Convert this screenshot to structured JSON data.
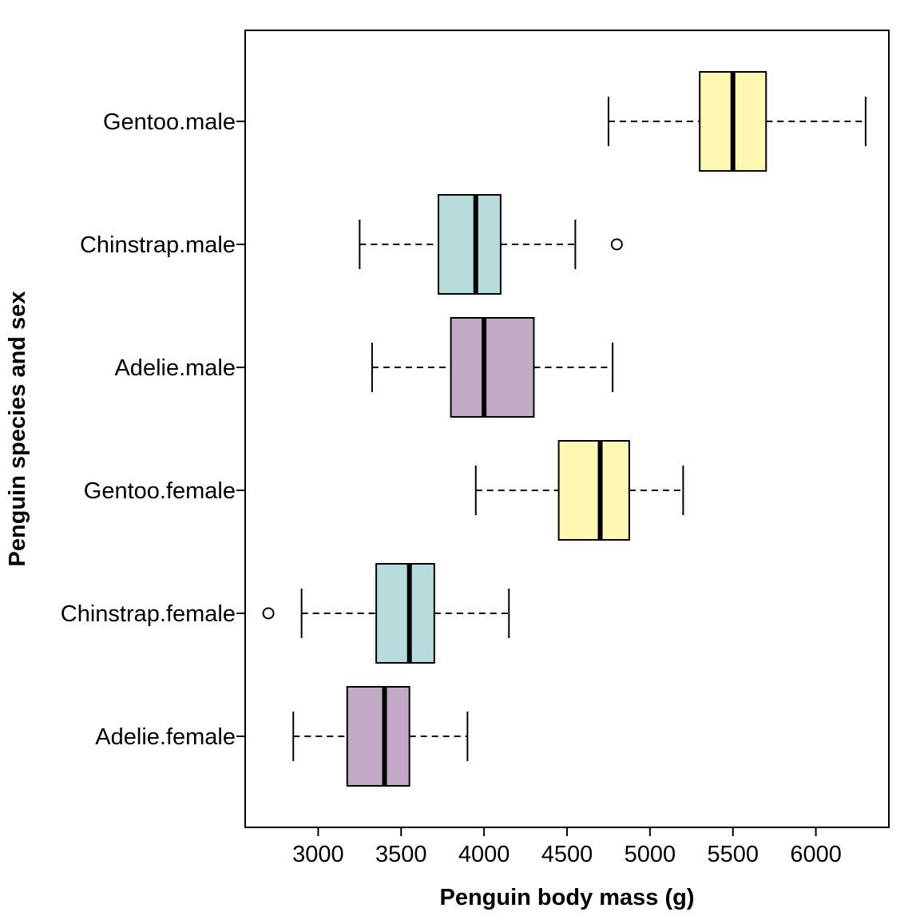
{
  "chart_data": {
    "type": "boxplot",
    "orientation": "horizontal",
    "xlabel": "Penguin body mass (g)",
    "ylabel": "Penguin species and sex",
    "xlim": [
      2560,
      6440
    ],
    "x_ticks": [
      3000,
      3500,
      4000,
      4500,
      5000,
      5500,
      6000
    ],
    "grid": false,
    "colors": {
      "Adelie": "#c2aac7",
      "Chinstrap": "#b8dcdc",
      "Gentoo": "#fff7b2"
    },
    "series": [
      {
        "name": "Adelie.female",
        "species": "Adelie",
        "whisker_low": 2850,
        "q1": 3175,
        "median": 3400,
        "q3": 3550,
        "whisker_high": 3900,
        "outliers": []
      },
      {
        "name": "Chinstrap.female",
        "species": "Chinstrap",
        "whisker_low": 2900,
        "q1": 3350,
        "median": 3550,
        "q3": 3700,
        "whisker_high": 4150,
        "outliers": [
          2700
        ]
      },
      {
        "name": "Gentoo.female",
        "species": "Gentoo",
        "whisker_low": 3950,
        "q1": 4450,
        "median": 4700,
        "q3": 4875,
        "whisker_high": 5200,
        "outliers": []
      },
      {
        "name": "Adelie.male",
        "species": "Adelie",
        "whisker_low": 3325,
        "q1": 3800,
        "median": 4000,
        "q3": 4300,
        "whisker_high": 4775,
        "outliers": []
      },
      {
        "name": "Chinstrap.male",
        "species": "Chinstrap",
        "whisker_low": 3250,
        "q1": 3725,
        "median": 3950,
        "q3": 4100,
        "whisker_high": 4550,
        "outliers": [
          4800
        ]
      },
      {
        "name": "Gentoo.male",
        "species": "Gentoo",
        "whisker_low": 4750,
        "q1": 5300,
        "median": 5500,
        "q3": 5700,
        "whisker_high": 6300,
        "outliers": []
      }
    ]
  }
}
